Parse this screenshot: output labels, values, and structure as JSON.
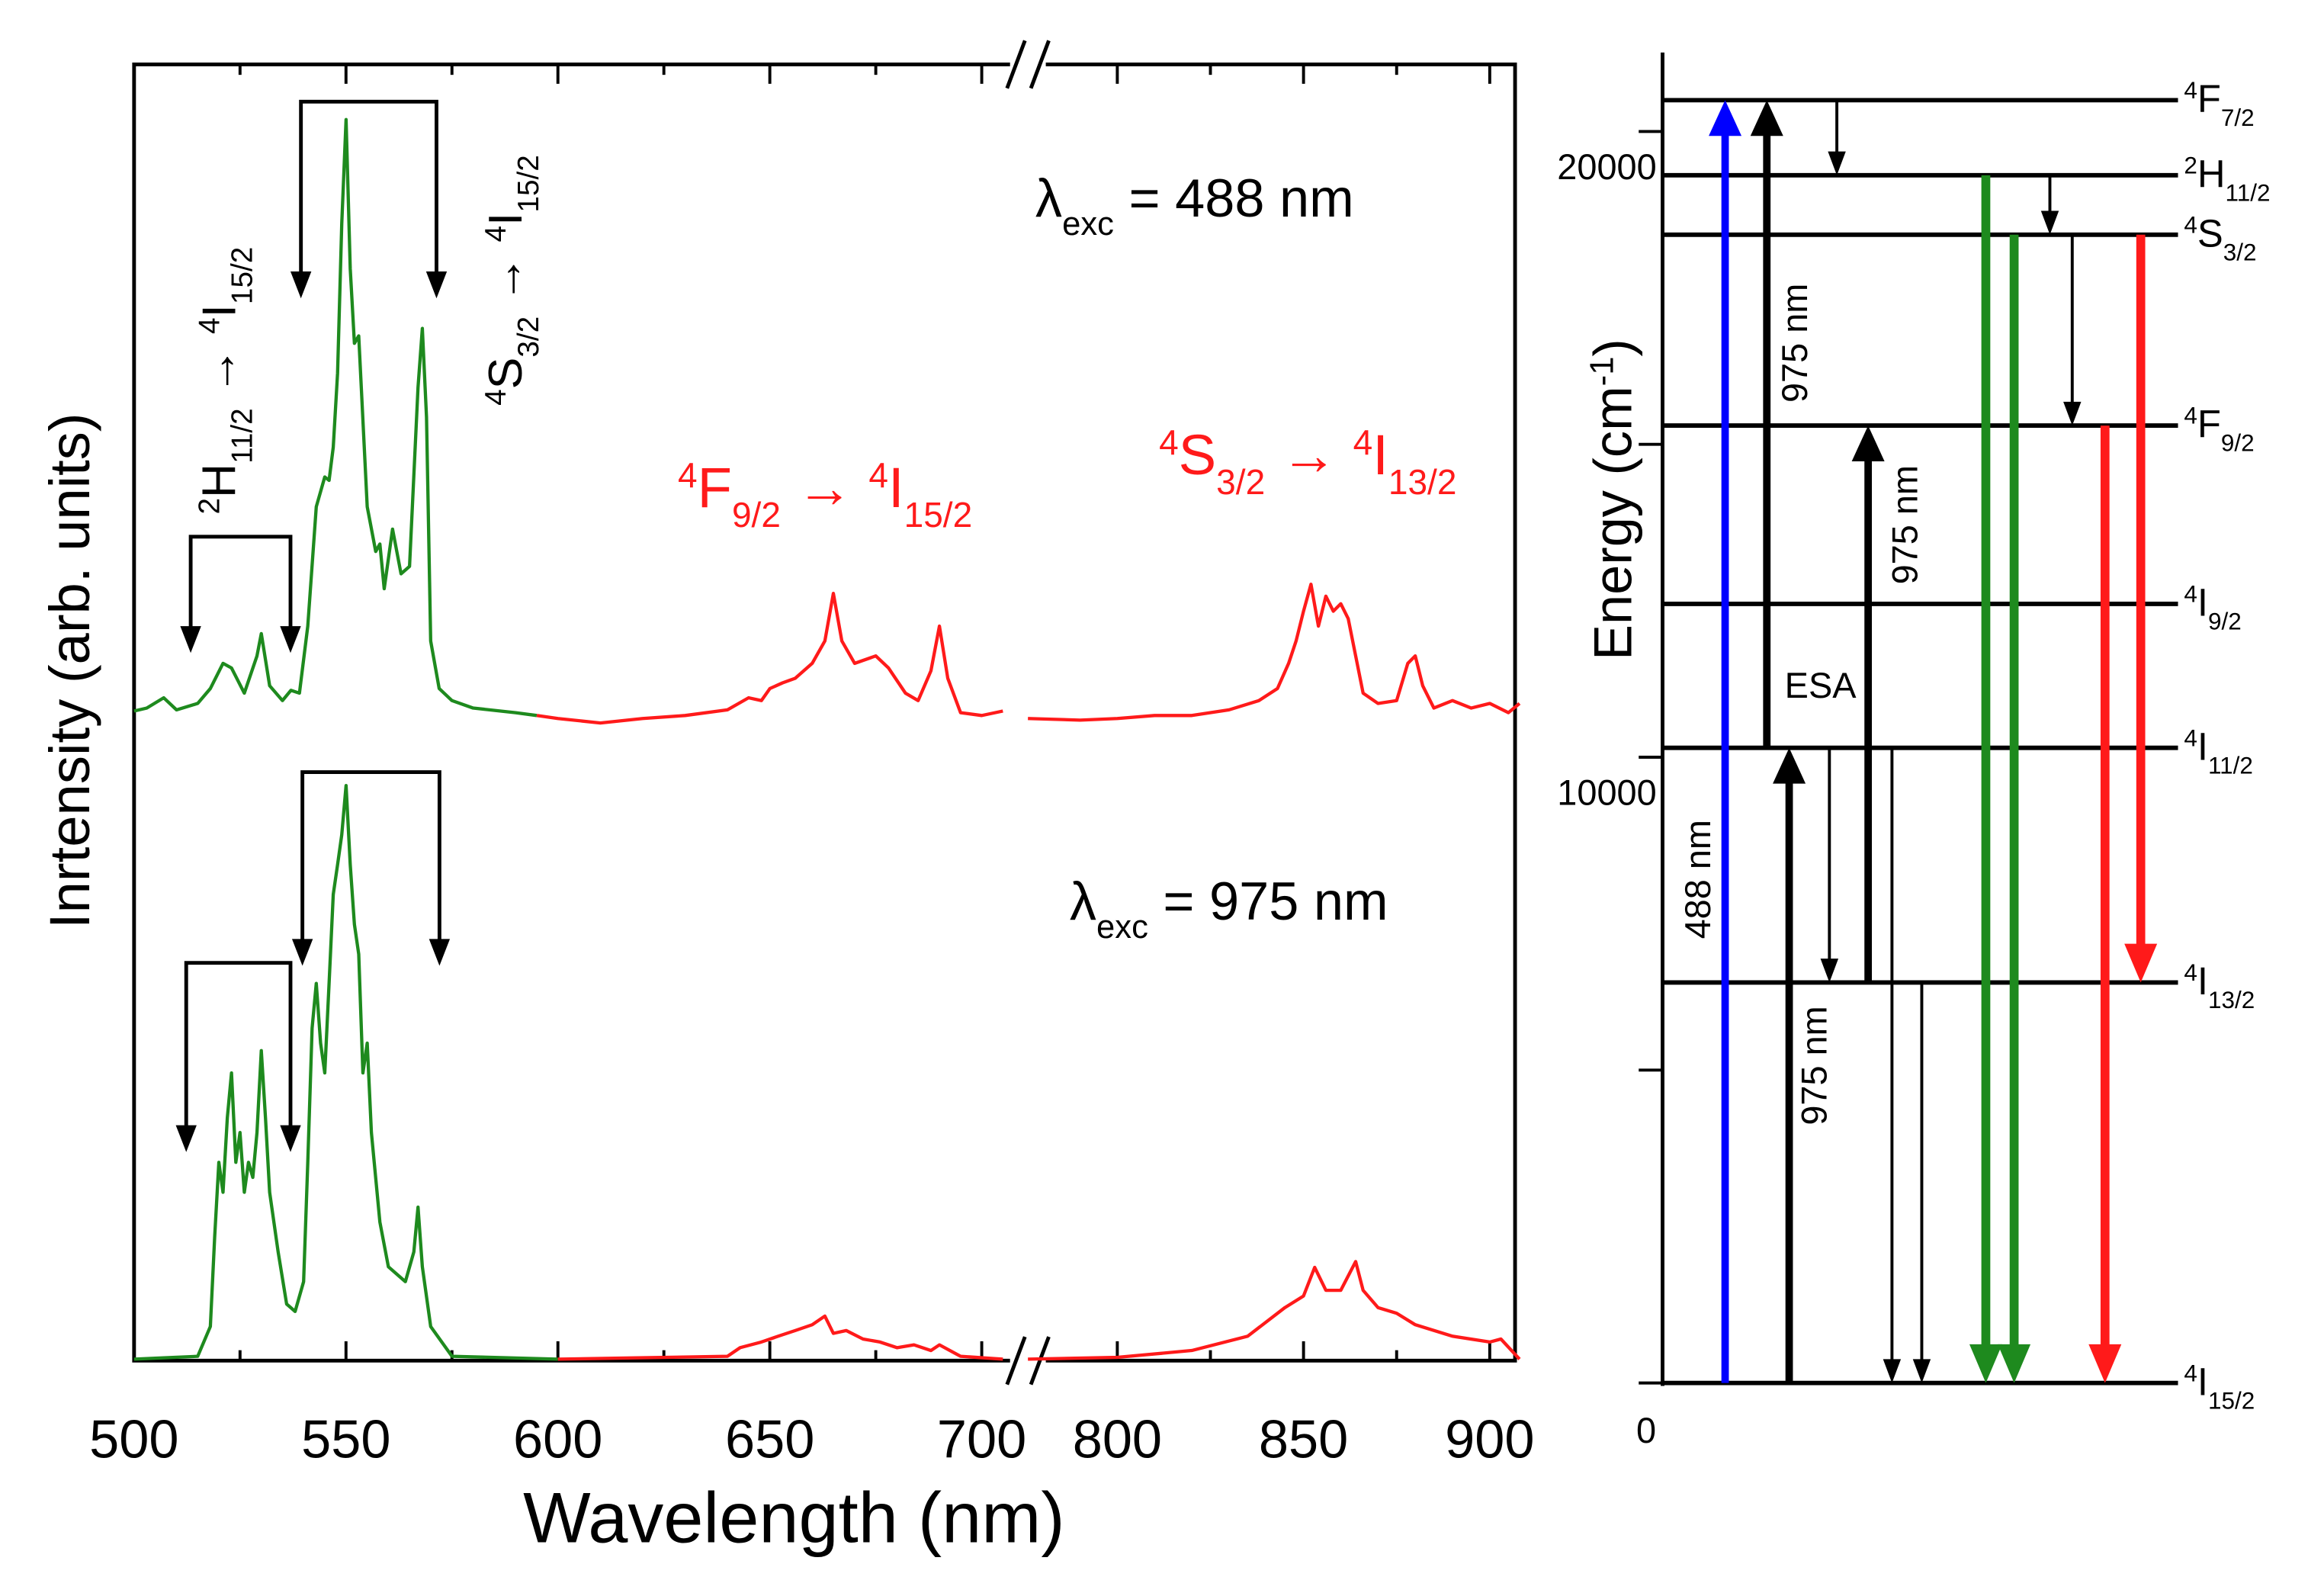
{
  "chart_data": [
    {
      "type": "line",
      "title": "",
      "xlabel": "Wavelength (nm)",
      "ylabel": "Inrtensity (arb. units)",
      "x_ticks": [
        "500",
        "550",
        "600",
        "650",
        "700",
        "800",
        "850",
        "900"
      ],
      "x_tick_values": [
        500,
        550,
        600,
        650,
        700,
        800,
        850,
        900
      ],
      "x_break": [
        707,
        776
      ],
      "xlim": [
        500,
        908
      ],
      "ylim": [
        0,
        2.26
      ],
      "grid": false,
      "series": [
        {
          "name": "λexc = 488 nm",
          "label_parts": [
            [
              "",
              "λ"
            ],
            [
              "sub",
              "exc"
            ],
            [
              "",
              " = 488 nm"
            ]
          ],
          "segments": [
            {
              "color": "#1e8a1e",
              "x": [
                500,
                503,
                507,
                510,
                515,
                518,
                521,
                523,
                526,
                529,
                530,
                532,
                535,
                537,
                539,
                541,
                543,
                545,
                546,
                547,
                548,
                549,
                550,
                551,
                552,
                553,
                555,
                557,
                558,
                559,
                561,
                563,
                565,
                567,
                568,
                569,
                570,
                572,
                575,
                580,
                590,
                595
              ],
              "y": [
                1.13,
                1.135,
                1.153,
                1.132,
                1.143,
                1.169,
                1.213,
                1.205,
                1.161,
                1.226,
                1.265,
                1.174,
                1.148,
                1.166,
                1.161,
                1.278,
                1.486,
                1.538,
                1.532,
                1.59,
                1.719,
                1.979,
                2.161,
                1.901,
                1.771,
                1.784,
                1.486,
                1.408,
                1.421,
                1.343,
                1.447,
                1.369,
                1.382,
                1.694,
                1.797,
                1.642,
                1.252,
                1.169,
                1.148,
                1.135,
                1.127,
                1.122
              ]
            },
            {
              "color": "#ff1a1a",
              "x": [
                595,
                600,
                610,
                620,
                630,
                640,
                645,
                648,
                650,
                653,
                656,
                660,
                663,
                665,
                667,
                670,
                675,
                678,
                682,
                685,
                688,
                690,
                692,
                695,
                700,
                705
              ],
              "y": [
                1.122,
                1.117,
                1.109,
                1.117,
                1.122,
                1.132,
                1.153,
                1.148,
                1.169,
                1.179,
                1.187,
                1.213,
                1.252,
                1.335,
                1.252,
                1.213,
                1.226,
                1.205,
                1.161,
                1.148,
                1.2,
                1.278,
                1.187,
                1.127,
                1.122,
                1.13
              ]
            },
            {
              "color": "#ff1a1a",
              "x": [
                776,
                790,
                800,
                810,
                820,
                830,
                838,
                843,
                846,
                848,
                850,
                852,
                854,
                856,
                858,
                860,
                862,
                864,
                866,
                870,
                875,
                878,
                880,
                882,
                885,
                890,
                895,
                900,
                905,
                908
              ],
              "y": [
                1.117,
                1.114,
                1.117,
                1.122,
                1.122,
                1.132,
                1.148,
                1.169,
                1.213,
                1.252,
                1.304,
                1.351,
                1.278,
                1.33,
                1.304,
                1.317,
                1.291,
                1.226,
                1.161,
                1.143,
                1.148,
                1.213,
                1.226,
                1.174,
                1.135,
                1.148,
                1.135,
                1.143,
                1.127,
                1.143
              ]
            }
          ]
        },
        {
          "name": "λexc = 975 nm",
          "label_parts": [
            [
              "",
              "λ"
            ],
            [
              "sub",
              "exc"
            ],
            [
              "",
              " = 975 nm"
            ]
          ],
          "segments": [
            {
              "color": "#1e8a1e",
              "x": [
                500,
                515,
                518,
                519,
                520,
                521,
                522,
                523,
                524,
                525,
                526,
                527,
                528,
                529,
                530,
                531,
                532,
                534,
                536,
                538,
                540,
                541,
                542,
                543,
                544,
                545,
                546,
                547,
                548,
                549,
                550,
                551,
                552,
                553,
                554,
                555,
                556,
                558,
                560,
                562,
                564,
                566,
                567,
                568,
                570,
                575,
                600
              ],
              "y": [
                0,
                0.005,
                0.057,
                0.213,
                0.343,
                0.291,
                0.421,
                0.499,
                0.343,
                0.395,
                0.291,
                0.343,
                0.317,
                0.395,
                0.538,
                0.421,
                0.291,
                0.187,
                0.096,
                0.083,
                0.135,
                0.343,
                0.577,
                0.655,
                0.551,
                0.499,
                0.655,
                0.81,
                0.862,
                0.914,
                1.0,
                0.862,
                0.758,
                0.706,
                0.499,
                0.551,
                0.395,
                0.239,
                0.161,
                0.148,
                0.135,
                0.187,
                0.265,
                0.161,
                0.057,
                0.005,
                0
              ]
            },
            {
              "color": "#ff1a1a",
              "x": [
                600,
                640,
                643,
                648,
                652,
                656,
                660,
                663,
                665,
                668,
                672,
                676,
                680,
                684,
                688,
                690,
                695,
                705
              ],
              "y": [
                0,
                0.005,
                0.02,
                0.03,
                0.04,
                0.05,
                0.06,
                0.075,
                0.045,
                0.05,
                0.035,
                0.03,
                0.02,
                0.025,
                0.015,
                0.025,
                0.005,
                0
              ]
            },
            {
              "color": "#ff1a1a",
              "x": [
                776,
                800,
                820,
                835,
                845,
                850,
                853,
                856,
                860,
                864,
                866,
                870,
                875,
                880,
                890,
                900,
                903,
                908
              ],
              "y": [
                0,
                0.003,
                0.015,
                0.04,
                0.09,
                0.11,
                0.16,
                0.12,
                0.12,
                0.17,
                0.12,
                0.09,
                0.08,
                0.06,
                0.04,
                0.03,
                0.035,
                0
              ]
            }
          ]
        }
      ],
      "annotations": [
        {
          "parts": [
            [
              "sup",
              "2"
            ],
            [
              "",
              "H"
            ],
            [
              "sub",
              "11/2"
            ],
            [
              "",
              " → "
            ],
            [
              "sup",
              "4"
            ],
            [
              "",
              "I"
            ],
            [
              "sub",
              "15/2"
            ]
          ],
          "color": "#000000"
        },
        {
          "parts": [
            [
              "sup",
              "4"
            ],
            [
              "",
              "S"
            ],
            [
              "sub",
              "3/2"
            ],
            [
              "",
              " → "
            ],
            [
              "sup",
              "4"
            ],
            [
              "",
              "I"
            ],
            [
              "sub",
              "15/2"
            ]
          ],
          "color": "#000000"
        },
        {
          "parts": [
            [
              "sup",
              "4"
            ],
            [
              "",
              "F"
            ],
            [
              "sub",
              "9/2"
            ],
            [
              "",
              " → "
            ],
            [
              "sup",
              "4"
            ],
            [
              "",
              "I"
            ],
            [
              "sub",
              "15/2"
            ]
          ],
          "color": "#ff1a1a"
        },
        {
          "parts": [
            [
              "sup",
              "4"
            ],
            [
              "",
              "S"
            ],
            [
              "sub",
              "3/2"
            ],
            [
              "",
              " → "
            ],
            [
              "sup",
              "4"
            ],
            [
              "",
              "I"
            ],
            [
              "sub",
              "13/2"
            ]
          ],
          "color": "#ff1a1a"
        }
      ]
    },
    {
      "type": "energy-level-diagram",
      "ylabel_parts": [
        [
          "",
          "Energy (cm"
        ],
        [
          "sup",
          "-1"
        ],
        [
          "",
          ")"
        ]
      ],
      "y_ticks": [
        "0",
        "10000",
        "20000"
      ],
      "y_tick_values": [
        0,
        10000,
        20000
      ],
      "ylim": [
        0,
        21000
      ],
      "levels": [
        {
          "name": "4F7/2",
          "parts": [
            [
              "sup",
              "4"
            ],
            [
              "",
              "F"
            ],
            [
              "sub",
              "7/2"
            ]
          ],
          "energy": 20500
        },
        {
          "name": "2H11/2",
          "parts": [
            [
              "sup",
              "2"
            ],
            [
              "",
              "H"
            ],
            [
              "sub",
              "11/2"
            ]
          ],
          "energy": 19300
        },
        {
          "name": "4S3/2",
          "parts": [
            [
              "sup",
              "4"
            ],
            [
              "",
              "S"
            ],
            [
              "sub",
              "3/2"
            ]
          ],
          "energy": 18350
        },
        {
          "name": "4F9/2",
          "parts": [
            [
              "sup",
              "4"
            ],
            [
              "",
              "F"
            ],
            [
              "sub",
              "9/2"
            ]
          ],
          "energy": 15300
        },
        {
          "name": "4I9/2",
          "parts": [
            [
              "sup",
              "4"
            ],
            [
              "",
              "I"
            ],
            [
              "sub",
              "9/2"
            ]
          ],
          "energy": 12450
        },
        {
          "name": "4I11/2",
          "parts": [
            [
              "sup",
              "4"
            ],
            [
              "",
              "I"
            ],
            [
              "sub",
              "11/2"
            ]
          ],
          "energy": 10150
        },
        {
          "name": "4I13/2",
          "parts": [
            [
              "sup",
              "4"
            ],
            [
              "",
              "I"
            ],
            [
              "sub",
              "13/2"
            ]
          ],
          "energy": 6400
        },
        {
          "name": "4I15/2",
          "parts": [
            [
              "sup",
              "4"
            ],
            [
              "",
              "I"
            ],
            [
              "sub",
              "15/2"
            ]
          ],
          "energy": 0
        }
      ],
      "transitions": [
        {
          "from": "4I15/2",
          "to": "4F7/2",
          "kind": "excitation",
          "color": "#0000ff",
          "label": "488 nm"
        },
        {
          "from": "4I11/2",
          "to": "4F7/2",
          "kind": "excitation",
          "color": "#000000",
          "label": "975 nm"
        },
        {
          "from": "4F7/2",
          "to": "2H11/2",
          "kind": "nonradiative",
          "color": "#000000"
        },
        {
          "from": "4I15/2",
          "to": "4I11/2",
          "kind": "excitation",
          "color": "#000000",
          "label": "975 nm"
        },
        {
          "from": "4I11/2",
          "to": "4I13/2",
          "kind": "nonradiative",
          "color": "#000000"
        },
        {
          "from": "4I13/2",
          "to": "4F9/2",
          "kind": "excitation",
          "color": "#000000",
          "label": "975 nm"
        },
        {
          "from": "4I11/2",
          "to": "4I15/2",
          "kind": "nonradiative",
          "color": "#000000"
        },
        {
          "from": "4I13/2",
          "to": "4I15/2",
          "kind": "nonradiative",
          "color": "#000000"
        },
        {
          "from": "2H11/2",
          "to": "4S3/2",
          "kind": "nonradiative",
          "color": "#000000"
        },
        {
          "from": "2H11/2",
          "to": "4I15/2",
          "kind": "emission",
          "color": "#1e8a1e"
        },
        {
          "from": "4S3/2",
          "to": "4I15/2",
          "kind": "emission",
          "color": "#1e8a1e"
        },
        {
          "from": "4S3/2",
          "to": "4F9/2",
          "kind": "nonradiative",
          "color": "#000000"
        },
        {
          "from": "4F9/2",
          "to": "4I15/2",
          "kind": "emission",
          "color": "#ff1a1a"
        },
        {
          "from": "4S3/2",
          "to": "4I13/2",
          "kind": "emission",
          "color": "#ff1a1a"
        }
      ],
      "esa_label": "ESA"
    }
  ]
}
